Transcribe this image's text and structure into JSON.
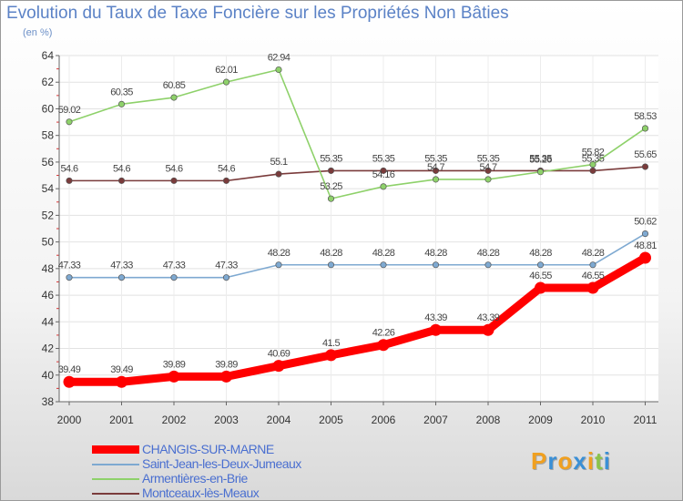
{
  "chart_data": {
    "type": "line",
    "title": "Evolution du Taux de Taxe Foncière sur les Propriétés Non Bâties",
    "ylabel": "(en %)",
    "xlabel": "",
    "ylim": [
      38,
      64
    ],
    "yticks": [
      38,
      40,
      42,
      44,
      46,
      48,
      50,
      52,
      54,
      56,
      58,
      60,
      62,
      64
    ],
    "categories": [
      "2000",
      "2001",
      "2002",
      "2003",
      "2004",
      "2005",
      "2006",
      "2007",
      "2008",
      "2009",
      "2010",
      "2011"
    ],
    "series": [
      {
        "name": "CHANGIS-SUR-MARNE",
        "color": "#ff0000",
        "values": [
          39.49,
          39.49,
          39.89,
          39.89,
          40.69,
          41.5,
          42.26,
          43.39,
          43.39,
          46.55,
          46.55,
          48.81
        ],
        "labels": [
          "39.49",
          "39.49",
          "39.89",
          "39.89",
          "40.69",
          "41.5",
          "42.26",
          "43.39",
          "43.39",
          "46.55",
          "46.55",
          "48.81"
        ]
      },
      {
        "name": "Saint-Jean-les-Deux-Jumeaux",
        "color": "#7ea9d1",
        "values": [
          47.33,
          47.33,
          47.33,
          47.33,
          48.28,
          48.28,
          48.28,
          48.28,
          48.28,
          48.28,
          48.28,
          50.62
        ],
        "labels": [
          "47.33",
          "47.33",
          "47.33",
          "47.33",
          "48.28",
          "48.28",
          "48.28",
          "48.28",
          "48.28",
          "48.28",
          "48.28",
          "50.62"
        ]
      },
      {
        "name": "Armentières-en-Brie",
        "color": "#8ed16a",
        "values": [
          59.02,
          60.35,
          60.85,
          62.01,
          62.94,
          53.25,
          54.16,
          54.7,
          54.7,
          55.26,
          55.82,
          58.53
        ],
        "labels": [
          "59.02",
          "60.35",
          "60.85",
          "62.01",
          "62.94",
          "53.25",
          "54.16",
          "54.7",
          "54.7",
          "55.26",
          "55.82",
          "58.53"
        ]
      },
      {
        "name": "Montceaux-lès-Meaux",
        "color": "#7a3b3b",
        "values": [
          54.6,
          54.6,
          54.6,
          54.6,
          55.1,
          55.35,
          55.35,
          55.35,
          55.35,
          55.35,
          55.35,
          55.65
        ],
        "labels": [
          "54.6",
          "54.6",
          "54.6",
          "54.6",
          "55.1",
          "55.35",
          "55.35",
          "55.35",
          "55.35",
          "55.35",
          "55.35",
          "55.65"
        ]
      }
    ]
  },
  "legend": [
    {
      "label": "CHANGIS-SUR-MARNE",
      "color": "#ff0000"
    },
    {
      "label": "Saint-Jean-les-Deux-Jumeaux",
      "color": "#7ea9d1"
    },
    {
      "label": "Armentières-en-Brie",
      "color": "#8ed16a"
    },
    {
      "label": "Montceaux-lès-Meaux",
      "color": "#7a3b3b"
    }
  ],
  "logo": {
    "letters": [
      "P",
      "r",
      "o",
      "x",
      "i",
      "t",
      "i"
    ],
    "colors": [
      "#f0a020",
      "#3a8fd6",
      "#f0a020",
      "#3a8fd6",
      "#f0a020",
      "#8bc34a",
      "#3a8fd6"
    ]
  }
}
